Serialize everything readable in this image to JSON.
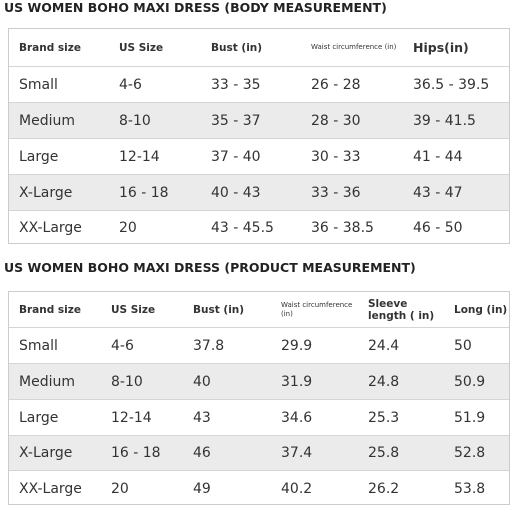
{
  "tables": [
    {
      "title": "US WOMEN BOHO MAXI DRESS (BODY MEASUREMENT)",
      "header": [
        "Brand size",
        "US Size",
        "Bust (in)",
        "Waist circumference (in)",
        "Hips(in)"
      ],
      "rows": [
        [
          "Small",
          "4-6",
          "33 - 35",
          "26 - 28",
          "36.5 - 39.5"
        ],
        [
          "Medium",
          "8-10",
          "35 - 37",
          "28 - 30",
          "39 - 41.5"
        ],
        [
          "Large",
          "12-14",
          "37 - 40",
          "30 - 33",
          "41 - 44"
        ],
        [
          "X-Large",
          "16 - 18",
          "40 - 43",
          "33 - 36",
          "43 - 47"
        ],
        [
          "XX-Large",
          "20",
          "43 - 45.5",
          "36 - 38.5",
          "46 - 50"
        ]
      ]
    },
    {
      "title": "US WOMEN BOHO MAXI DRESS (PRODUCT MEASUREMENT)",
      "header": [
        "Brand size",
        "US Size",
        "Bust (in)",
        "Waist circumference (in)",
        "Sleeve length ( in)",
        "Long (in)"
      ],
      "rows": [
        [
          "Small",
          "4-6",
          "37.8",
          "29.9",
          "24.4",
          "50"
        ],
        [
          "Medium",
          "8-10",
          "40",
          "31.9",
          "24.8",
          "50.9"
        ],
        [
          "Large",
          "12-14",
          "43",
          "34.6",
          "25.3",
          "51.9"
        ],
        [
          "X-Large",
          "16 - 18",
          "46",
          "37.4",
          "25.8",
          "52.8"
        ],
        [
          "XX-Large",
          "20",
          "49",
          "40.2",
          "26.2",
          "53.8"
        ]
      ]
    }
  ]
}
